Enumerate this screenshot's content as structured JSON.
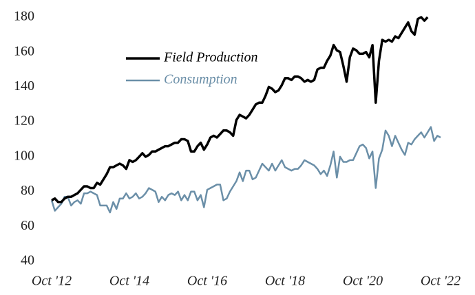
{
  "chart_data": {
    "type": "line",
    "x": [
      "2012-10",
      "2012-11",
      "2012-12",
      "2013-01",
      "2013-02",
      "2013-03",
      "2013-04",
      "2013-05",
      "2013-06",
      "2013-07",
      "2013-08",
      "2013-09",
      "2013-10",
      "2013-11",
      "2013-12",
      "2014-01",
      "2014-02",
      "2014-03",
      "2014-04",
      "2014-05",
      "2014-06",
      "2014-07",
      "2014-08",
      "2014-09",
      "2014-10",
      "2014-11",
      "2014-12",
      "2015-01",
      "2015-02",
      "2015-03",
      "2015-04",
      "2015-05",
      "2015-06",
      "2015-07",
      "2015-08",
      "2015-09",
      "2015-10",
      "2015-11",
      "2015-12",
      "2016-01",
      "2016-02",
      "2016-03",
      "2016-04",
      "2016-05",
      "2016-06",
      "2016-07",
      "2016-08",
      "2016-09",
      "2016-10",
      "2016-11",
      "2016-12",
      "2017-01",
      "2017-02",
      "2017-03",
      "2017-04",
      "2017-05",
      "2017-06",
      "2017-07",
      "2017-08",
      "2017-09",
      "2017-10",
      "2017-11",
      "2017-12",
      "2018-01",
      "2018-02",
      "2018-03",
      "2018-04",
      "2018-05",
      "2018-06",
      "2018-07",
      "2018-08",
      "2018-09",
      "2018-10",
      "2018-11",
      "2018-12",
      "2019-01",
      "2019-02",
      "2019-03",
      "2019-04",
      "2019-05",
      "2019-06",
      "2019-07",
      "2019-08",
      "2019-09",
      "2019-10",
      "2019-11",
      "2019-12",
      "2020-01",
      "2020-02",
      "2020-03",
      "2020-04",
      "2020-05",
      "2020-06",
      "2020-07",
      "2020-08",
      "2020-09",
      "2020-10",
      "2020-11",
      "2020-12",
      "2021-01",
      "2021-02",
      "2021-03",
      "2021-04",
      "2021-05",
      "2021-06",
      "2021-07",
      "2021-08",
      "2021-09",
      "2021-10",
      "2021-11",
      "2021-12",
      "2022-01",
      "2022-02",
      "2022-03",
      "2022-04",
      "2022-05",
      "2022-06",
      "2022-07",
      "2022-08",
      "2022-09",
      "2022-10"
    ],
    "series": [
      {
        "name": "Field Production",
        "color": "#000000",
        "values": [
          75,
          76,
          74,
          74,
          76,
          77,
          77,
          78,
          79,
          81,
          83,
          83,
          82,
          82,
          85,
          84,
          87,
          90,
          94,
          94,
          95,
          96,
          95,
          93,
          98,
          97,
          98,
          100,
          102,
          100,
          101,
          103,
          103,
          104,
          105,
          106,
          106,
          107,
          108,
          108,
          110,
          110,
          109,
          103,
          103,
          106,
          108,
          104,
          107,
          111,
          112,
          111,
          113,
          115,
          115,
          114,
          112,
          121,
          124,
          123,
          122,
          124,
          127,
          130,
          131,
          131,
          135,
          140,
          139,
          137,
          138,
          141,
          145,
          145,
          144,
          146,
          146,
          145,
          143,
          144,
          143,
          144,
          150,
          151,
          151,
          155,
          158,
          164,
          161,
          160,
          152,
          143,
          157,
          162,
          161,
          159,
          159,
          160,
          157,
          164,
          131,
          155,
          167,
          166,
          167,
          166,
          169,
          168,
          171,
          174,
          177,
          172,
          170,
          179,
          180,
          178,
          180,
          null,
          null,
          null,
          null
        ]
      },
      {
        "name": "Consumption",
        "color": "#6b8fa8",
        "values": [
          75,
          69,
          71,
          73,
          77,
          77,
          72,
          74,
          75,
          73,
          79,
          79,
          80,
          79,
          78,
          72,
          72,
          72,
          68,
          74,
          70,
          76,
          76,
          79,
          76,
          77,
          79,
          76,
          77,
          79,
          82,
          81,
          80,
          74,
          77,
          75,
          78,
          79,
          78,
          80,
          75,
          78,
          75,
          80,
          80,
          75,
          78,
          71,
          81,
          82,
          83,
          84,
          84,
          75,
          76,
          80,
          83,
          86,
          91,
          86,
          92,
          92,
          87,
          88,
          92,
          96,
          94,
          92,
          96,
          92,
          95,
          98,
          94,
          93,
          92,
          93,
          93,
          95,
          98,
          97,
          96,
          95,
          93,
          90,
          92,
          89,
          95,
          103,
          88,
          100,
          97,
          97,
          98,
          98,
          102,
          106,
          107,
          105,
          99,
          103,
          82,
          99,
          104,
          115,
          112,
          106,
          112,
          108,
          104,
          101,
          108,
          107,
          110,
          112,
          114,
          111,
          114,
          117,
          109,
          112,
          111
        ]
      }
    ],
    "xticks": [
      {
        "value": "2012-10",
        "label": "Oct '12"
      },
      {
        "value": "2014-10",
        "label": "Oct '14"
      },
      {
        "value": "2016-10",
        "label": "Oct '16"
      },
      {
        "value": "2018-10",
        "label": "Oct '18"
      },
      {
        "value": "2020-10",
        "label": "Oct '20"
      },
      {
        "value": "2022-10",
        "label": "Oct '22"
      }
    ],
    "ylim": [
      40,
      180
    ],
    "yticks": [
      40,
      60,
      80,
      100,
      120,
      140,
      160,
      180
    ],
    "grid": false
  }
}
